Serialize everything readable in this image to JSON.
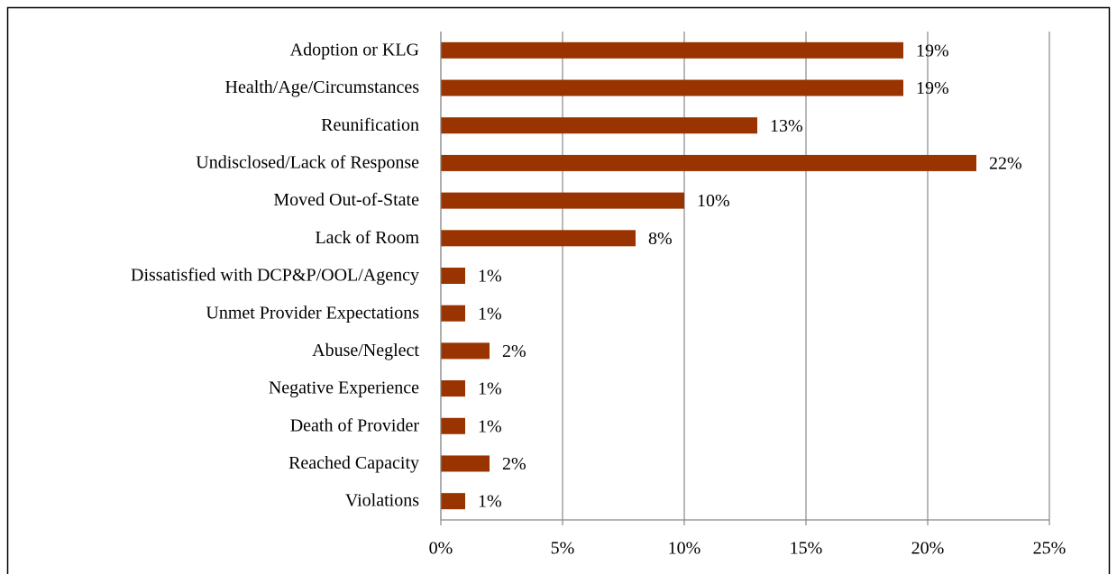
{
  "chart_data": {
    "type": "bar",
    "orientation": "horizontal",
    "categories": [
      "Adoption or KLG",
      "Health/Age/Circumstances",
      "Reunification",
      "Undisclosed/Lack of Response",
      "Moved Out-of-State",
      "Lack of Room",
      "Dissatisfied with DCP&P/OOL/Agency",
      "Unmet Provider Expectations",
      "Abuse/Neglect",
      "Negative Experience",
      "Death of Provider",
      "Reached Capacity",
      "Violations"
    ],
    "values": [
      19,
      19,
      13,
      22,
      10,
      8,
      1,
      1,
      2,
      1,
      1,
      2,
      1
    ],
    "value_labels": [
      "19%",
      "19%",
      "13%",
      "22%",
      "10%",
      "8%",
      "1%",
      "1%",
      "2%",
      "1%",
      "1%",
      "2%",
      "1%"
    ],
    "color": "#993300",
    "xlim": [
      0,
      25
    ],
    "xticks": [
      {
        "value": 0,
        "label": "0%"
      },
      {
        "value": 5,
        "label": "5%"
      },
      {
        "value": 10,
        "label": "10%"
      },
      {
        "value": 15,
        "label": "15%"
      },
      {
        "value": 20,
        "label": "20%"
      },
      {
        "value": 25,
        "label": "25%"
      }
    ],
    "grid": true
  }
}
